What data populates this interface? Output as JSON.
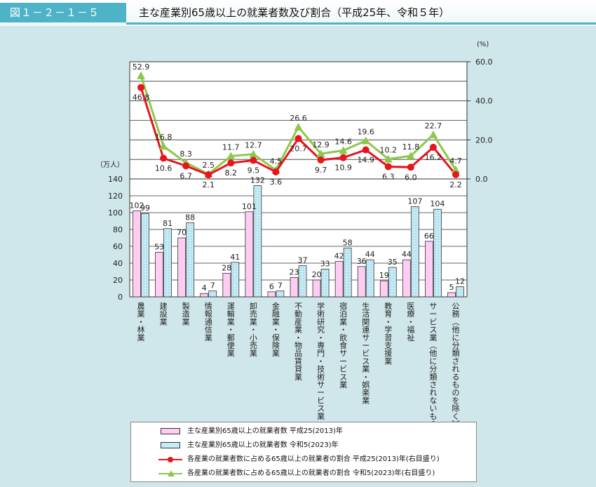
{
  "header": {
    "fig_label": "図１－２－１－５",
    "title": "主な産業別65歳以上の就業者数及び割合（平成25年、令和５年）"
  },
  "colors": {
    "bar2013": "#ffccf2",
    "bar2023": "#c6ecf7",
    "line2013": "#e8141e",
    "line2023": "#8cc84a",
    "header_accent": "#4eb3c6",
    "background": "#cfe6ea"
  },
  "chart_data": {
    "type": "bar",
    "categories": [
      "農業，林業",
      "建設業",
      "製造業",
      "情報通信業",
      "運輸業，郵便業",
      "卸売業，小売業",
      "金融業，保険業",
      "不動産業，物品賃貸業",
      "学術研究，専門・技術サービス業",
      "宿泊業，飲食サービス業",
      "生活関連サービス業，娯楽業",
      "教育，学習支援業",
      "医療，福祉",
      "サービス業（他に分類されないもの）",
      "公務（他に分類されるものを除く）"
    ],
    "series": [
      {
        "name": "主な産業別65歳以上の就業者数 平成25(2013)年",
        "kind": "bar",
        "axis": "left",
        "values": [
          102,
          53,
          70,
          4,
          28,
          101,
          6,
          23,
          20,
          42,
          36,
          19,
          44,
          66,
          5
        ]
      },
      {
        "name": "主な産業別65歳以上の就業者数 令和5(2023)年",
        "kind": "bar",
        "axis": "left",
        "values": [
          99,
          81,
          88,
          7,
          41,
          132,
          7,
          37,
          33,
          58,
          44,
          35,
          107,
          104,
          12
        ]
      },
      {
        "name": "各産業の就業者数に占める65歳以上の就業者の割合 平成25(2013)年(右目盛り)",
        "kind": "line",
        "axis": "right",
        "values": [
          46.8,
          10.6,
          6.7,
          2.1,
          8.2,
          9.5,
          3.6,
          20.7,
          9.7,
          10.9,
          14.9,
          6.3,
          6.0,
          16.2,
          2.2
        ]
      },
      {
        "name": "各産業の就業者数に占める65歳以上の就業者の割合 令和5(2023)年(右目盛り)",
        "kind": "line",
        "axis": "right",
        "values": [
          52.9,
          16.8,
          8.3,
          2.5,
          11.7,
          12.7,
          4.5,
          26.6,
          12.9,
          14.6,
          19.6,
          10.2,
          11.8,
          22.7,
          4.7
        ]
      }
    ],
    "left_axis": {
      "unit": "（万人）",
      "ylim": [
        0,
        140
      ],
      "ticks": [
        "0",
        "20",
        "40",
        "60",
        "80",
        "100",
        "120",
        "140"
      ]
    },
    "right_axis": {
      "unit": "(%)",
      "ylim": [
        0,
        60
      ],
      "ticks": [
        "0.0",
        "20.0",
        "40.0",
        "60.0"
      ]
    },
    "grid": true,
    "legend": "bottom"
  }
}
